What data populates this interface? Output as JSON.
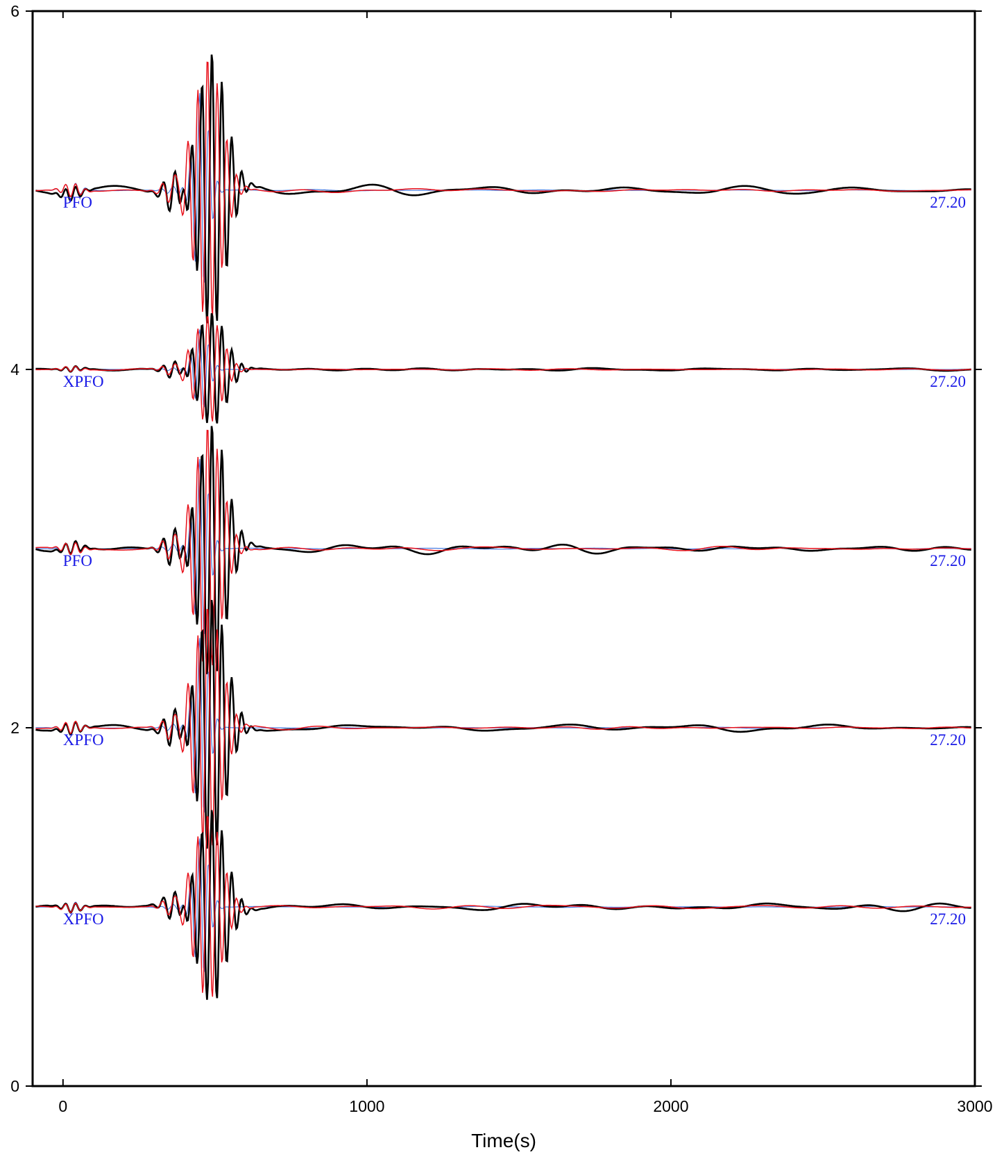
{
  "chart_data": {
    "type": "line",
    "title": "",
    "xlabel": "Time(s)",
    "ylabel": "",
    "xlim": [
      -100,
      3000
    ],
    "ylim": [
      0,
      6
    ],
    "x_ticks": [
      0,
      1000,
      2000,
      3000
    ],
    "y_ticks": [
      0,
      2,
      4,
      6
    ],
    "grid": false,
    "colors": {
      "observed": "#000000",
      "synthetic_red": "#e8101a",
      "synthetic_blue": "#4a7de0",
      "label": "#1a1ae6"
    },
    "traces": [
      {
        "station": "PFO",
        "value": "27.20",
        "baseline": 5.0,
        "max_amp": 0.78,
        "noise": 0.022
      },
      {
        "station": "XPFO",
        "value": "27.20",
        "baseline": 4.0,
        "max_amp": 0.32,
        "noise": 0.008
      },
      {
        "station": "PFO",
        "value": "27.20",
        "baseline": 3.0,
        "max_amp": 0.72,
        "noise": 0.022
      },
      {
        "station": "XPFO",
        "value": "27.20",
        "baseline": 2.0,
        "max_amp": 0.72,
        "noise": 0.018
      },
      {
        "station": "XPFO",
        "value": "27.20",
        "baseline": 1.0,
        "max_amp": 0.55,
        "noise": 0.026
      }
    ]
  }
}
